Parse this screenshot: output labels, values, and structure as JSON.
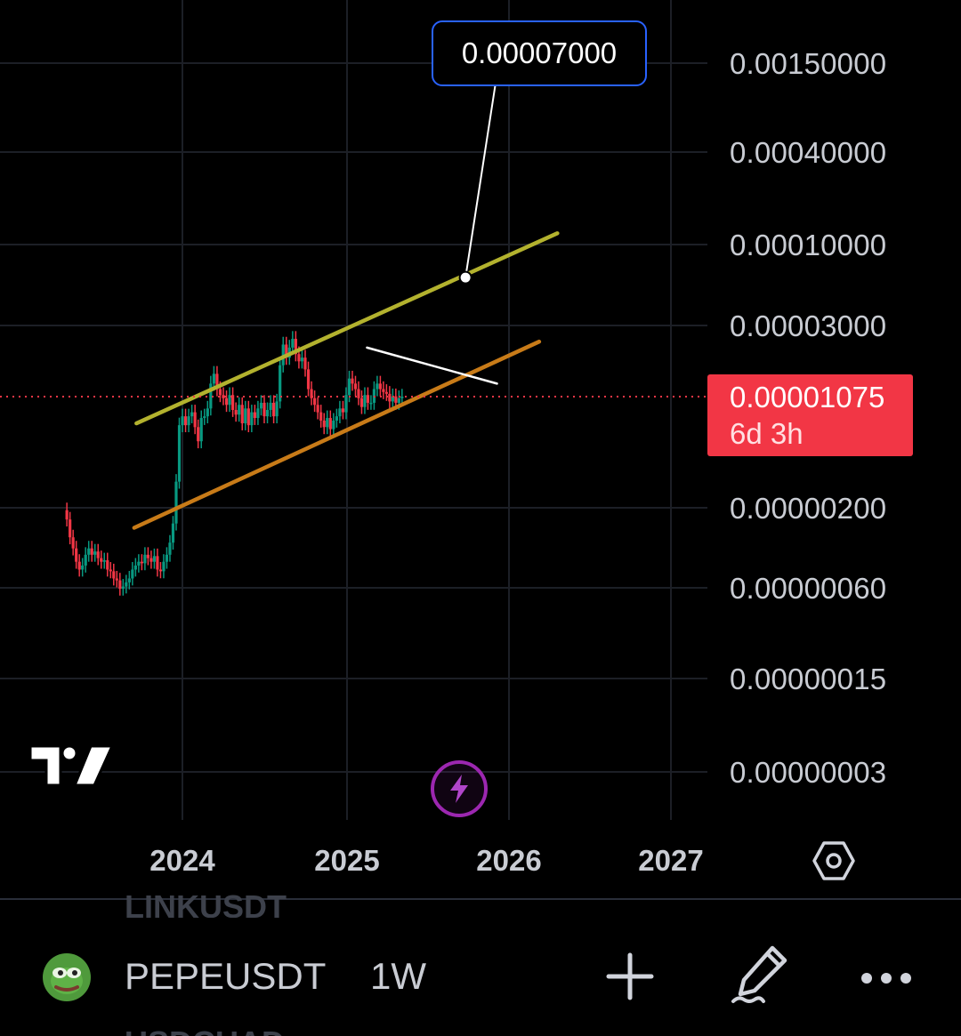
{
  "chart_data": {
    "type": "candlestick",
    "symbol": "PEPEUSDT",
    "interval": "1W",
    "scale": "log",
    "grid": true,
    "y_ticks": [
      "0.00150000",
      "0.00040000",
      "0.00010000",
      "0.00003000",
      "0.00001075",
      "0.00000200",
      "0.00000060",
      "0.00000015",
      "0.00000003"
    ],
    "x_ticks": [
      "2024",
      "2025",
      "2026",
      "2027"
    ],
    "current_price": "0.00001075",
    "countdown": "6d 3h",
    "target_label": "0.00007000",
    "trendlines": [
      {
        "name": "upper-channel",
        "color": "#b3b22e",
        "from": [
          "2023-09-20",
          7.2e-06
        ],
        "to": [
          "2026-04-20",
          0.00012
        ]
      },
      {
        "name": "lower-channel",
        "color": "#c87b18",
        "from": [
          "2023-09-15",
          1.5e-06
        ],
        "to": [
          "2026-03-10",
          2.4e-05
        ]
      },
      {
        "name": "resistance",
        "color": "#ffffff",
        "from": [
          "2025-02-15",
          2.2e-05
        ],
        "to": [
          "2025-12-05",
          1.3e-05
        ]
      },
      {
        "name": "target-callout",
        "color": "#ffffff",
        "from": [
          "2025-09-25",
          6.2e-05
        ],
        "to": [
          "2025-12-10",
          0.0016
        ]
      }
    ],
    "weekly_closes": [
      1.7e-06,
      1.3e-06,
      1.1e-06,
      9e-07,
      8e-07,
      8.5e-07,
      1e-06,
      1.1e-06,
      1e-06,
      1.05e-06,
      9.5e-07,
      9e-07,
      9.2e-07,
      8e-07,
      7.8e-07,
      7e-07,
      6.8e-07,
      6e-07,
      6.2e-07,
      6.6e-07,
      7e-07,
      8e-07,
      8.5e-07,
      9e-07,
      8.8e-07,
      1e-06,
      9.5e-07,
      9e-07,
      9.8e-07,
      8e-07,
      7.8e-07,
      9e-07,
      1e-06,
      1.2e-06,
      1.6e-06,
      3e-06,
      7e-06,
      8e-06,
      7e-06,
      8e-06,
      8.5e-06,
      6.8e-06,
      5.5e-06,
      7.8e-06,
      8e-06,
      9e-06,
      1.3e-05,
      1.5e-05,
      1.2e-05,
      1.1e-05,
      1.05e-05,
      9.5e-06,
      1.1e-05,
      8.8e-06,
      8.2e-06,
      9.5e-06,
      7.2e-06,
      9e-06,
      7e-06,
      8.5e-06,
      7.8e-06,
      9e-06,
      9.8e-06,
      8e-06,
      8.8e-06,
      9.8e-06,
      8e-06,
      1e-05,
      1.7e-05,
      2.3e-05,
      1.9e-05,
      2.2e-05,
      2.5e-05,
      2e-05,
      1.8e-05,
      1.9e-05,
      1.6e-05,
      1.2e-05,
      1.05e-05,
      9.5e-06,
      8.5e-06,
      7.5e-06,
      6.8e-06,
      7.8e-06,
      6.6e-06,
      7.5e-06,
      8e-06,
      9e-06,
      8.5e-06,
      1.1e-05,
      1.4e-05,
      1.3e-05,
      1.2e-05,
      1.05e-05,
      9.2e-06,
      1.1e-05,
      9.8e-06,
      9.8e-06,
      1.2e-05,
      1.3e-05,
      1.2e-05,
      1.15e-05,
      1.12e-05,
      1e-05,
      1.08e-05,
      9.8e-06,
      1.05e-05,
      1.075e-05
    ]
  },
  "toolbar": {
    "symbol": "PEPEUSDT",
    "interval": "1W",
    "prev_symbol": "LINKUSDT",
    "next_symbol": "USDCUAD",
    "avatar_icon": "pepe-frog-icon",
    "add_icon": "plus-icon",
    "draw_icon": "pencil-icon",
    "more_icon": "more-dots-icon",
    "settings_icon": "settings-hexagon-icon",
    "bolt_icon": "lightning-icon",
    "logo_icon": "tradingview-logo"
  },
  "colors": {
    "background": "#000000",
    "up": "#089981",
    "down": "#f23645",
    "price_box": "#f23645",
    "target_border": "#2962ff",
    "bolt_ring": "#9c27b0"
  }
}
